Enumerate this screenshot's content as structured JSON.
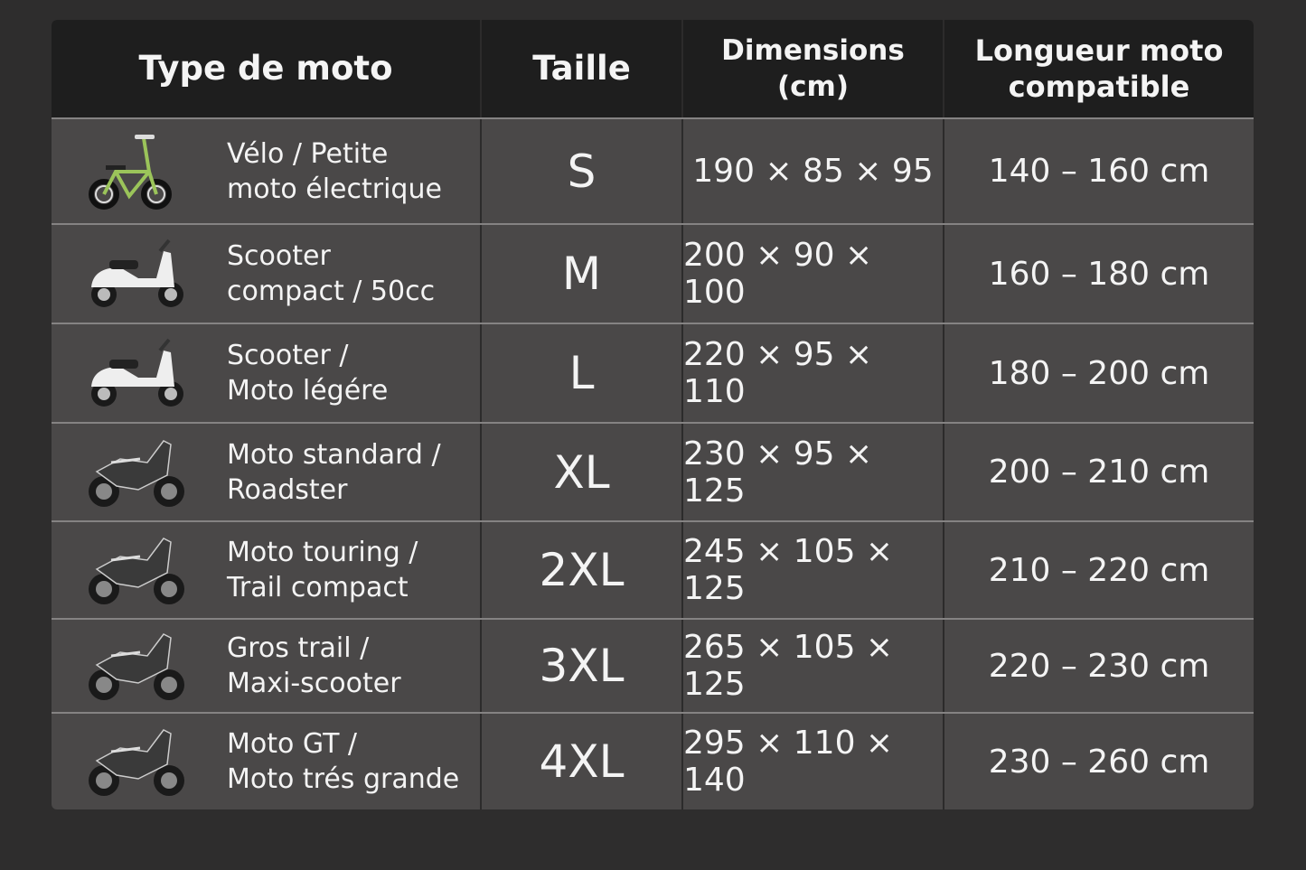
{
  "table": {
    "headers": [
      "Type de moto",
      "Taille",
      "Dimensions (cm)",
      "Longueur moto\ncompatible"
    ],
    "rows": [
      {
        "type": "Vélo / Petite\nmoto électrique",
        "icon": "bicycle-icon",
        "size": "S",
        "dimensions": "190 × 85 × 95",
        "length": "140 – 160 cm"
      },
      {
        "type": "Scooter\ncompact / 50cc",
        "icon": "scooter-icon",
        "size": "M",
        "dimensions": "200 × 90 × 100",
        "length": "160 – 180 cm"
      },
      {
        "type": "Scooter /\nMoto légére",
        "icon": "scooter-icon",
        "size": "L",
        "dimensions": "220 × 95 × 110",
        "length": "180 – 200 cm"
      },
      {
        "type": "Moto standard /\nRoadster",
        "icon": "motorcycle-icon",
        "size": "XL",
        "dimensions": "230 × 95 × 125",
        "length": "200 – 210 cm"
      },
      {
        "type": "Moto touring /\nTrail compact",
        "icon": "motorcycle-icon",
        "size": "2XL",
        "dimensions": "245 × 105 × 125",
        "length": "210 – 220 cm"
      },
      {
        "type": "Gros trail /\nMaxi-scooter",
        "icon": "motorcycle-icon",
        "size": "3XL",
        "dimensions": "265 × 105 × 125",
        "length": "220 – 230 cm"
      },
      {
        "type": "Moto GT /\nMoto trés grande",
        "icon": "motorcycle-icon",
        "size": "4XL",
        "dimensions": "295 × 110 × 140",
        "length": "230 – 260 cm"
      }
    ]
  },
  "colors": {
    "background": "#2e2d2d",
    "header": "#1e1e1e",
    "row": "#4a4848",
    "bicycle_frame": "#9bc45a"
  }
}
